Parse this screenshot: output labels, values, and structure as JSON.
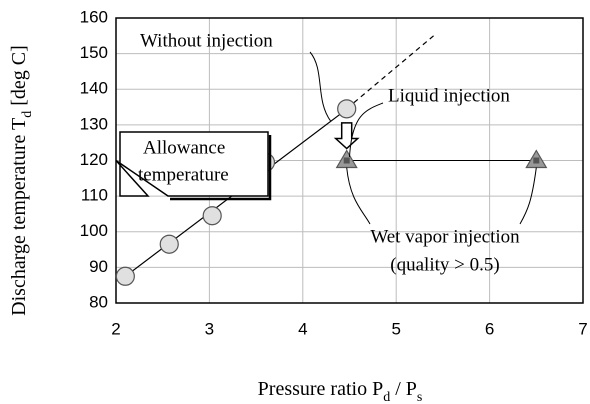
{
  "chart_data": {
    "type": "scatter",
    "xlabel": [
      "Pressure ratio P",
      "d",
      " / P",
      "s"
    ],
    "ylabel": [
      "Discharge temperature T",
      "d",
      " [deg C]"
    ],
    "xlim": [
      2,
      7
    ],
    "xticks": [
      2,
      3,
      4,
      5,
      6,
      7
    ],
    "ylim": [
      80,
      160
    ],
    "yticks": [
      80,
      90,
      100,
      110,
      120,
      130,
      140,
      150,
      160
    ],
    "grid": true,
    "series": [
      {
        "marker": "circle",
        "color": "#e0e0e0",
        "x": [
          2.1,
          2.57,
          3.03,
          3.6,
          4.47
        ],
        "values": [
          87.5,
          96.5,
          104.5,
          119.5,
          134.5
        ]
      },
      {
        "marker": "triangle",
        "color": "#999999",
        "x": [
          4.47,
          6.5
        ],
        "values": [
          120,
          120
        ]
      }
    ],
    "fit_solid": {
      "x": [
        2.05,
        4.4
      ],
      "values": [
        86.5,
        133
      ]
    },
    "fit_dashed": {
      "x": [
        4.4,
        5.4
      ],
      "values": [
        133,
        155
      ]
    },
    "allowance": 120,
    "annotations": [
      "Without injection",
      "Liquid injection",
      "Wet vapor injection",
      "(quality > 0.5)",
      "Allowance",
      "temperature"
    ]
  }
}
